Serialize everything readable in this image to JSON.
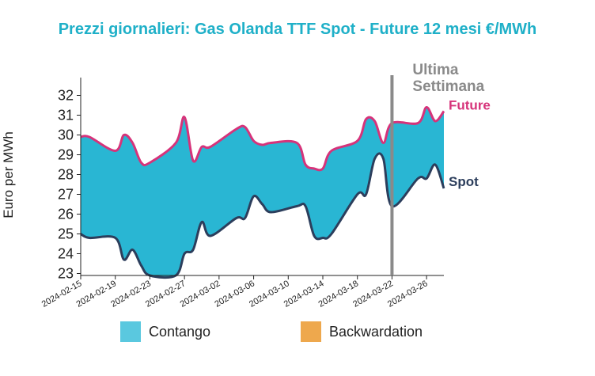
{
  "chart_data": {
    "type": "area",
    "title": "Prezzi giornalieri: Gas Olanda TTF Spot - Future 12 mesi €/MWh",
    "ylabel": "Euro per MWh",
    "xlabel": "",
    "ylim": [
      22.9,
      32.9
    ],
    "yticks": [
      23,
      24,
      25,
      26,
      27,
      28,
      29,
      30,
      31,
      32
    ],
    "xticks": [
      "2024-02-15",
      "2024-02-19",
      "2024-02-23",
      "2024-02-27",
      "2024-03-02",
      "2024-03-06",
      "2024-03-10",
      "2024-03-14",
      "2024-03-18",
      "2024-03-22",
      "2024-03-26"
    ],
    "x": [
      "2024-02-15",
      "2024-02-16",
      "2024-02-19",
      "2024-02-20",
      "2024-02-21",
      "2024-02-22",
      "2024-02-23",
      "2024-02-26",
      "2024-02-27",
      "2024-02-28",
      "2024-02-29",
      "2024-03-01",
      "2024-03-04",
      "2024-03-05",
      "2024-03-06",
      "2024-03-07",
      "2024-03-08",
      "2024-03-11",
      "2024-03-12",
      "2024-03-13",
      "2024-03-14",
      "2024-03-15",
      "2024-03-18",
      "2024-03-19",
      "2024-03-20",
      "2024-03-21",
      "2024-03-22",
      "2024-03-25",
      "2024-03-26",
      "2024-03-27",
      "2024-03-28"
    ],
    "series": [
      {
        "name": "Future",
        "color": "#d6337a",
        "values": [
          29.9,
          29.9,
          29.2,
          30.0,
          29.6,
          28.6,
          28.6,
          29.6,
          30.9,
          28.7,
          29.4,
          29.4,
          30.3,
          30.4,
          29.7,
          29.5,
          29.6,
          29.6,
          28.5,
          28.3,
          28.3,
          29.2,
          29.7,
          30.8,
          30.7,
          29.6,
          30.6,
          30.6,
          31.4,
          30.7,
          31.2
        ]
      },
      {
        "name": "Spot",
        "color": "#2c3e5c",
        "values": [
          25.0,
          24.8,
          24.8,
          23.7,
          24.2,
          23.4,
          22.9,
          22.9,
          24.0,
          24.2,
          25.6,
          24.9,
          25.8,
          25.8,
          26.9,
          26.5,
          26.1,
          26.4,
          26.4,
          24.9,
          24.8,
          25.0,
          27.0,
          27.0,
          28.8,
          28.8,
          26.4,
          27.8,
          27.8,
          28.5,
          27.3
        ]
      }
    ],
    "series_end_labels": {
      "future": "Future",
      "spot": "Spot"
    },
    "annotation": {
      "text_line1": "Ultima",
      "text_line2": "Settimana",
      "x": "2024-03-22"
    },
    "fill_colors": {
      "contango": "#29b6d3",
      "backwardation": "#eea84d"
    },
    "legend": [
      {
        "label": "Contango",
        "color": "#5ac8df"
      },
      {
        "label": "Backwardation",
        "color": "#eea84d"
      }
    ],
    "legend_position": "bottom",
    "grid": false
  }
}
